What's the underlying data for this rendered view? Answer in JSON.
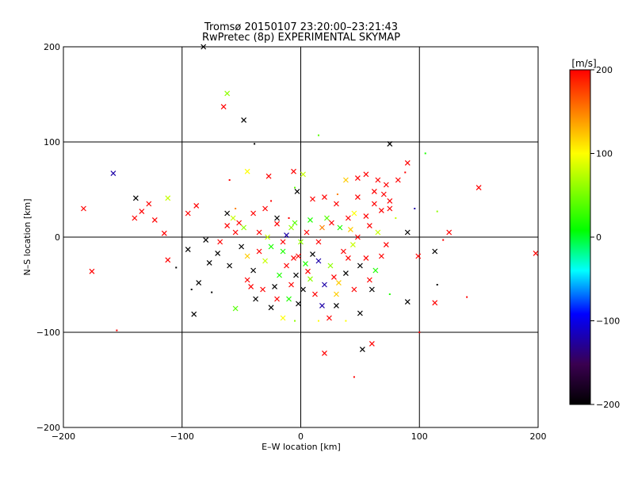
{
  "chart_data": {
    "type": "scatter",
    "title": "Tromsø 20150107 23:20:00–23:21:43",
    "subtitle": "RwPretec (8p) EXPERIMENTAL SKYMAP",
    "xlabel": "E–W location [km]",
    "ylabel": "N–S location [km]",
    "xlim": [
      -200,
      200
    ],
    "ylim": [
      -200,
      200
    ],
    "x_ticks": [
      -200,
      -100,
      0,
      100,
      200
    ],
    "y_ticks": [
      -200,
      -100,
      0,
      100,
      200
    ],
    "grid_lines_x": [
      -100,
      0,
      100
    ],
    "grid_lines_y": [
      -100,
      0,
      100
    ],
    "colorbar": {
      "label": "[m/s]",
      "range": [
        -200,
        200
      ],
      "ticks": [
        200,
        100,
        0,
        -100,
        -200
      ],
      "colors": [
        "#000000",
        "#3a0050",
        "#0000ff",
        "#00ffff",
        "#00ff00",
        "#ffff00",
        "#ff0000"
      ]
    },
    "markers": {
      "large": "×",
      "small": "dot"
    },
    "points": [
      [
        -65,
        137,
        200,
        "x"
      ],
      [
        -62,
        151,
        60,
        "x"
      ],
      [
        -48,
        123,
        -200,
        "x"
      ],
      [
        -82,
        200,
        -200,
        "x"
      ],
      [
        75,
        98,
        -200,
        "x"
      ],
      [
        -39,
        98,
        -200,
        "d"
      ],
      [
        15,
        107,
        40,
        "d"
      ],
      [
        105,
        88,
        20,
        "d"
      ],
      [
        -158,
        67,
        -120,
        "x"
      ],
      [
        -183,
        30,
        200,
        "x"
      ],
      [
        -139,
        41,
        -200,
        "x"
      ],
      [
        -112,
        41,
        80,
        "x"
      ],
      [
        -128,
        35,
        200,
        "x"
      ],
      [
        -134,
        27,
        200,
        "x"
      ],
      [
        -123,
        18,
        200,
        "x"
      ],
      [
        -140,
        20,
        200,
        "x"
      ],
      [
        -115,
        4,
        200,
        "x"
      ],
      [
        -112,
        -24,
        200,
        "x"
      ],
      [
        -176,
        -36,
        200,
        "x"
      ],
      [
        -155,
        -98,
        200,
        "d"
      ],
      [
        -90,
        -81,
        -200,
        "x"
      ],
      [
        -86,
        -48,
        -200,
        "x"
      ],
      [
        -92,
        -55,
        -200,
        "d"
      ],
      [
        -105,
        -32,
        -200,
        "d"
      ],
      [
        -95,
        -13,
        -200,
        "x"
      ],
      [
        -80,
        -3,
        -200,
        "x"
      ],
      [
        -77,
        -27,
        -200,
        "x"
      ],
      [
        -70,
        -17,
        -200,
        "x"
      ],
      [
        -60,
        -30,
        -200,
        "x"
      ],
      [
        -75,
        -58,
        -200,
        "d"
      ],
      [
        -57,
        20,
        80,
        "x"
      ],
      [
        -62,
        12,
        200,
        "x"
      ],
      [
        -45,
        69,
        100,
        "x"
      ],
      [
        -27,
        64,
        200,
        "x"
      ],
      [
        -6,
        69,
        200,
        "x"
      ],
      [
        2,
        66,
        80,
        "x"
      ],
      [
        -60,
        60,
        200,
        "d"
      ],
      [
        -88,
        33,
        200,
        "x"
      ],
      [
        -95,
        25,
        200,
        "x"
      ],
      [
        -55,
        30,
        150,
        "d"
      ],
      [
        -30,
        30,
        200,
        "x"
      ],
      [
        -25,
        38,
        200,
        "d"
      ],
      [
        -40,
        25,
        200,
        "x"
      ],
      [
        -35,
        5,
        200,
        "x"
      ],
      [
        -20,
        14,
        200,
        "x"
      ],
      [
        -10,
        20,
        200,
        "d"
      ],
      [
        -3,
        48,
        -200,
        "x"
      ],
      [
        -5,
        52,
        40,
        "d"
      ],
      [
        10,
        40,
        200,
        "x"
      ],
      [
        20,
        42,
        200,
        "x"
      ],
      [
        30,
        35,
        200,
        "x"
      ],
      [
        40,
        20,
        200,
        "x"
      ],
      [
        31,
        45,
        150,
        "d"
      ],
      [
        38,
        60,
        120,
        "x"
      ],
      [
        48,
        62,
        200,
        "x"
      ],
      [
        55,
        66,
        200,
        "x"
      ],
      [
        65,
        60,
        200,
        "x"
      ],
      [
        72,
        55,
        200,
        "x"
      ],
      [
        82,
        60,
        200,
        "x"
      ],
      [
        90,
        78,
        200,
        "x"
      ],
      [
        88,
        68,
        200,
        "d"
      ],
      [
        70,
        45,
        200,
        "x"
      ],
      [
        62,
        35,
        200,
        "x"
      ],
      [
        75,
        30,
        200,
        "x"
      ],
      [
        80,
        20,
        80,
        "d"
      ],
      [
        96,
        30,
        -120,
        "d"
      ],
      [
        115,
        27,
        60,
        "d"
      ],
      [
        150,
        52,
        200,
        "x"
      ],
      [
        125,
        5,
        200,
        "x"
      ],
      [
        120,
        -3,
        200,
        "d"
      ],
      [
        90,
        5,
        -200,
        "x"
      ],
      [
        99,
        -20,
        200,
        "x"
      ],
      [
        113,
        -15,
        -200,
        "x"
      ],
      [
        115,
        -50,
        -200,
        "d"
      ],
      [
        113,
        -69,
        200,
        "x"
      ],
      [
        140,
        -63,
        200,
        "d"
      ],
      [
        198,
        -17,
        200,
        "x"
      ],
      [
        100,
        -100,
        200,
        "d"
      ],
      [
        90,
        -68,
        -200,
        "x"
      ],
      [
        75,
        -60,
        20,
        "d"
      ],
      [
        60,
        -55,
        -200,
        "x"
      ],
      [
        50,
        -80,
        -200,
        "x"
      ],
      [
        52,
        -118,
        -200,
        "x"
      ],
      [
        60,
        -112,
        200,
        "x"
      ],
      [
        45,
        -147,
        200,
        "d"
      ],
      [
        20,
        -122,
        200,
        "x"
      ],
      [
        38,
        -88,
        100,
        "d"
      ],
      [
        24,
        -85,
        200,
        "x"
      ],
      [
        30,
        -72,
        -200,
        "x"
      ],
      [
        18,
        -72,
        -120,
        "x"
      ],
      [
        15,
        -88,
        100,
        "d"
      ],
      [
        -15,
        -85,
        100,
        "x"
      ],
      [
        -25,
        -74,
        -200,
        "x"
      ],
      [
        -20,
        -65,
        200,
        "x"
      ],
      [
        -55,
        -75,
        40,
        "x"
      ],
      [
        -5,
        -88,
        60,
        "d"
      ],
      [
        -45,
        -45,
        200,
        "x"
      ],
      [
        -40,
        -35,
        -200,
        "x"
      ],
      [
        -30,
        -25,
        80,
        "x"
      ],
      [
        -25,
        -10,
        20,
        "x"
      ],
      [
        -15,
        -5,
        200,
        "x"
      ],
      [
        -12,
        2,
        -120,
        "x"
      ],
      [
        -8,
        10,
        60,
        "x"
      ],
      [
        -2,
        -20,
        200,
        "x"
      ],
      [
        4,
        -28,
        20,
        "x"
      ],
      [
        10,
        -18,
        -200,
        "x"
      ],
      [
        15,
        -5,
        200,
        "x"
      ],
      [
        18,
        10,
        150,
        "x"
      ],
      [
        22,
        20,
        40,
        "x"
      ],
      [
        25,
        -30,
        60,
        "x"
      ],
      [
        28,
        -42,
        200,
        "x"
      ],
      [
        32,
        -48,
        120,
        "x"
      ],
      [
        38,
        -38,
        -200,
        "x"
      ],
      [
        40,
        -22,
        200,
        "x"
      ],
      [
        44,
        -8,
        80,
        "x"
      ],
      [
        48,
        0,
        200,
        "x"
      ],
      [
        50,
        -30,
        -200,
        "x"
      ],
      [
        55,
        -22,
        200,
        "x"
      ],
      [
        58,
        -45,
        200,
        "x"
      ],
      [
        63,
        -35,
        20,
        "x"
      ],
      [
        68,
        -20,
        200,
        "x"
      ],
      [
        72,
        -8,
        200,
        "x"
      ],
      [
        -4,
        -40,
        -200,
        "x"
      ],
      [
        -8,
        -50,
        200,
        "x"
      ],
      [
        2,
        -55,
        -200,
        "x"
      ],
      [
        8,
        -44,
        60,
        "x"
      ],
      [
        12,
        -60,
        200,
        "x"
      ],
      [
        20,
        -50,
        -120,
        "x"
      ],
      [
        -18,
        -40,
        20,
        "x"
      ],
      [
        -22,
        -52,
        -200,
        "x"
      ],
      [
        -32,
        -55,
        200,
        "x"
      ],
      [
        -12,
        -30,
        200,
        "x"
      ],
      [
        0,
        -5,
        60,
        "x"
      ],
      [
        5,
        5,
        200,
        "x"
      ],
      [
        8,
        18,
        20,
        "x"
      ],
      [
        -5,
        15,
        40,
        "x"
      ],
      [
        -20,
        20,
        -200,
        "x"
      ],
      [
        -28,
        0,
        80,
        "x"
      ],
      [
        -35,
        -15,
        200,
        "x"
      ],
      [
        -45,
        -20,
        120,
        "x"
      ],
      [
        -50,
        -10,
        -200,
        "x"
      ],
      [
        -55,
        5,
        200,
        "x"
      ],
      [
        -68,
        -5,
        200,
        "x"
      ],
      [
        -62,
        25,
        -200,
        "x"
      ],
      [
        -52,
        15,
        200,
        "x"
      ],
      [
        -48,
        10,
        60,
        "x"
      ],
      [
        33,
        10,
        20,
        "x"
      ],
      [
        26,
        15,
        200,
        "x"
      ],
      [
        42,
        8,
        120,
        "x"
      ],
      [
        58,
        12,
        200,
        "x"
      ],
      [
        65,
        5,
        80,
        "x"
      ],
      [
        36,
        -15,
        200,
        "x"
      ],
      [
        45,
        -55,
        200,
        "x"
      ],
      [
        30,
        -60,
        120,
        "x"
      ],
      [
        -10,
        -65,
        20,
        "x"
      ],
      [
        -2,
        -70,
        -200,
        "x"
      ],
      [
        -38,
        -65,
        -200,
        "x"
      ],
      [
        -42,
        -52,
        200,
        "x"
      ],
      [
        6,
        -36,
        200,
        "x"
      ],
      [
        15,
        -25,
        -120,
        "x"
      ],
      [
        -6,
        -22,
        200,
        "x"
      ],
      [
        -15,
        -15,
        20,
        "x"
      ],
      [
        45,
        25,
        100,
        "x"
      ],
      [
        55,
        22,
        200,
        "x"
      ],
      [
        48,
        42,
        200,
        "x"
      ],
      [
        62,
        48,
        200,
        "x"
      ],
      [
        75,
        38,
        200,
        "x"
      ],
      [
        68,
        28,
        200,
        "x"
      ]
    ]
  }
}
